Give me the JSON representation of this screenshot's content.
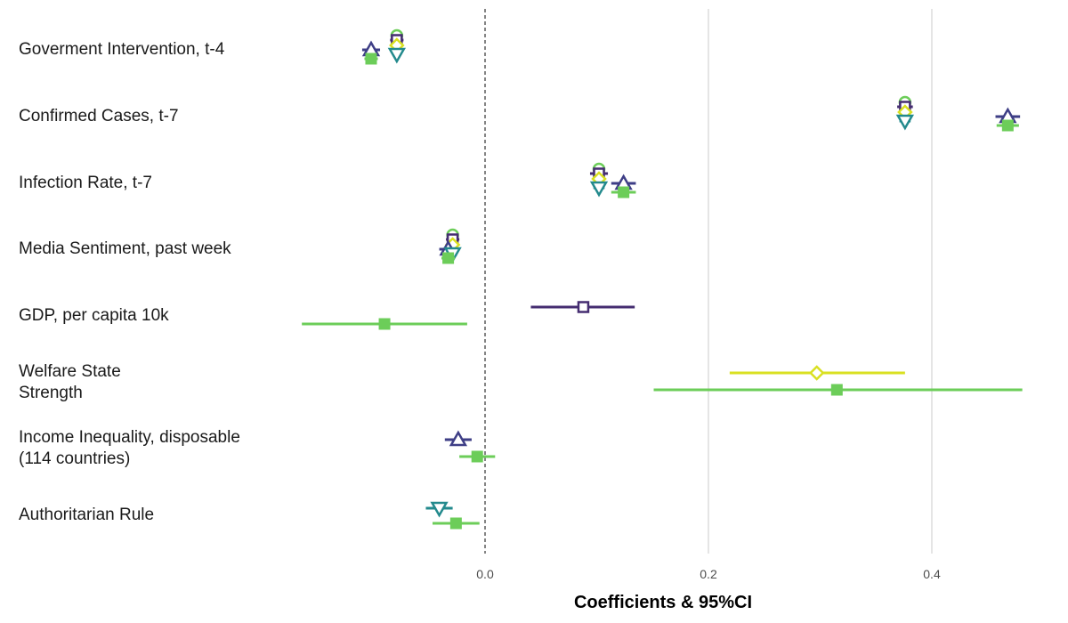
{
  "chart_data": {
    "type": "scatter",
    "subtype": "coefficient-plot",
    "title": "",
    "xlabel": "Coefficients & 95%CI",
    "ylabel": "",
    "xlim": [
      -0.2,
      0.5
    ],
    "x_ticks": [
      "0.0",
      "0.2",
      "0.4"
    ],
    "x_tick_values": [
      0.0,
      0.2,
      0.4
    ],
    "grid": "vertical major gridlines",
    "reference_line": {
      "x": 0,
      "style": "dashed"
    },
    "legend": "none",
    "categories": [
      "Goverment Intervention, t-4",
      "Confirmed Cases, t-7",
      "Infection Rate, t-7",
      "Media Sentiment, past week",
      "GDP, per capita 10k",
      "Welfare State\nStrength",
      "Income Inequality, disposable\n(114 countries)",
      "Authoritarian Rule"
    ],
    "series": [
      {
        "marker": "circle-open",
        "color": "#6ccd59",
        "points": [
          {
            "category": 0,
            "est": -0.079,
            "lo": -0.083,
            "hi": -0.075
          },
          {
            "category": 1,
            "est": 0.376,
            "lo": 0.371,
            "hi": 0.381
          },
          {
            "category": 2,
            "est": 0.102,
            "lo": 0.097,
            "hi": 0.107
          },
          {
            "category": 3,
            "est": -0.029,
            "lo": -0.033,
            "hi": -0.025
          }
        ]
      },
      {
        "marker": "square-open",
        "color": "#452d71",
        "points": [
          {
            "category": 0,
            "est": -0.079,
            "lo": -0.085,
            "hi": -0.073
          },
          {
            "category": 1,
            "est": 0.376,
            "lo": 0.369,
            "hi": 0.383
          },
          {
            "category": 2,
            "est": 0.102,
            "lo": 0.094,
            "hi": 0.11
          },
          {
            "category": 3,
            "est": -0.029,
            "lo": -0.035,
            "hi": -0.023
          },
          {
            "category": 4,
            "est": 0.088,
            "lo": 0.041,
            "hi": 0.134
          }
        ]
      },
      {
        "marker": "diamond-open",
        "color": "#d9e021",
        "points": [
          {
            "category": 0,
            "est": -0.079,
            "lo": -0.083,
            "hi": -0.075
          },
          {
            "category": 1,
            "est": 0.376,
            "lo": 0.371,
            "hi": 0.381
          },
          {
            "category": 2,
            "est": 0.102,
            "lo": 0.097,
            "hi": 0.107
          },
          {
            "category": 3,
            "est": -0.029,
            "lo": -0.033,
            "hi": -0.025
          },
          {
            "category": 5,
            "est": 0.297,
            "lo": 0.219,
            "hi": 0.376
          }
        ]
      },
      {
        "marker": "triangle-up-open",
        "color": "#3e3e86",
        "points": [
          {
            "category": 0,
            "est": -0.102,
            "lo": -0.11,
            "hi": -0.094
          },
          {
            "category": 1,
            "est": 0.468,
            "lo": 0.457,
            "hi": 0.479
          },
          {
            "category": 2,
            "est": 0.124,
            "lo": 0.113,
            "hi": 0.135
          },
          {
            "category": 3,
            "est": -0.033,
            "lo": -0.041,
            "hi": -0.025
          },
          {
            "category": 6,
            "est": -0.024,
            "lo": -0.036,
            "hi": -0.012
          }
        ]
      },
      {
        "marker": "triangle-down-open",
        "color": "#238a8d",
        "points": [
          {
            "category": 0,
            "est": -0.079,
            "lo": -0.083,
            "hi": -0.075
          },
          {
            "category": 1,
            "est": 0.376,
            "lo": 0.371,
            "hi": 0.381
          },
          {
            "category": 2,
            "est": 0.102,
            "lo": 0.097,
            "hi": 0.107
          },
          {
            "category": 3,
            "est": -0.029,
            "lo": -0.033,
            "hi": -0.025
          },
          {
            "category": 7,
            "est": -0.041,
            "lo": -0.053,
            "hi": -0.029
          }
        ]
      },
      {
        "marker": "square-filled",
        "color": "#6ccd59",
        "points": [
          {
            "category": 0,
            "est": -0.102,
            "lo": -0.108,
            "hi": -0.096
          },
          {
            "category": 1,
            "est": 0.468,
            "lo": 0.458,
            "hi": 0.478
          },
          {
            "category": 2,
            "est": 0.124,
            "lo": 0.113,
            "hi": 0.135
          },
          {
            "category": 3,
            "est": -0.033,
            "lo": -0.039,
            "hi": -0.027
          },
          {
            "category": 4,
            "est": -0.09,
            "lo": -0.164,
            "hi": -0.016
          },
          {
            "category": 5,
            "est": 0.315,
            "lo": 0.151,
            "hi": 0.481
          },
          {
            "category": 6,
            "est": -0.007,
            "lo": -0.023,
            "hi": 0.009
          },
          {
            "category": 7,
            "est": -0.026,
            "lo": -0.047,
            "hi": -0.005
          }
        ]
      }
    ]
  }
}
